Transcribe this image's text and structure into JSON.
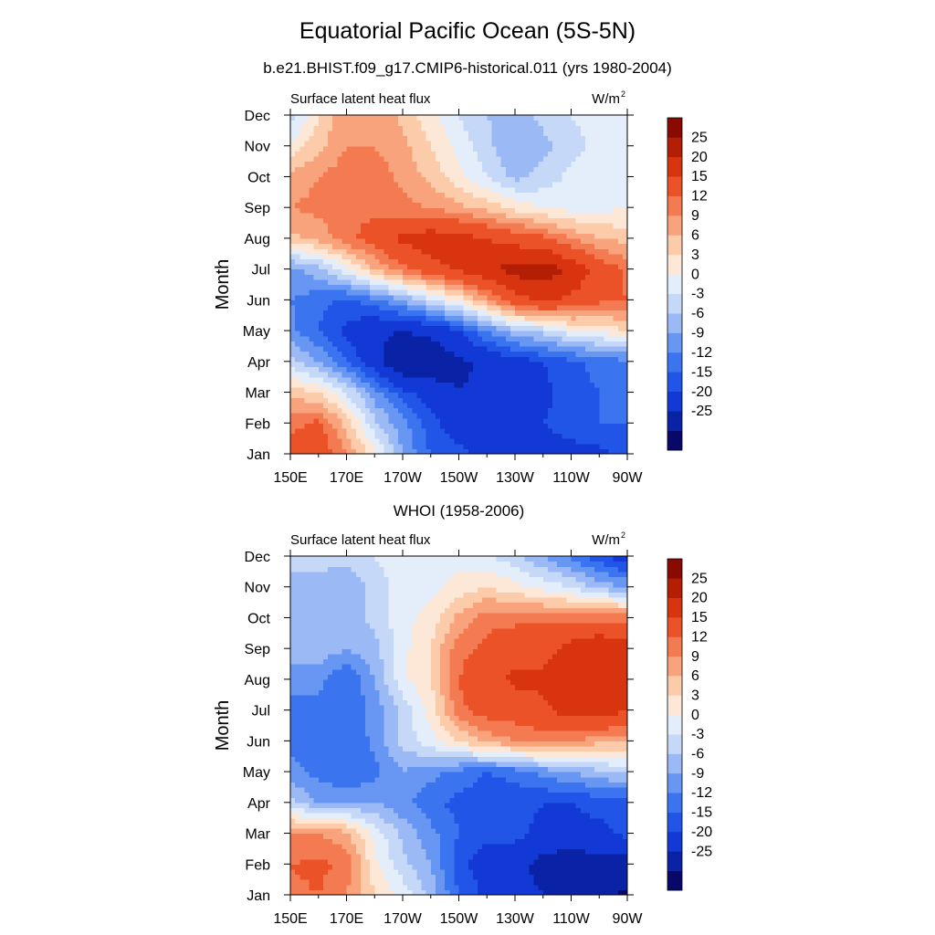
{
  "title": "Equatorial Pacific Ocean (5S-5N)",
  "subtitle": "b.e21.BHIST.f09_g17.CMIP6-historical.011 (yrs 1980-2004)",
  "ylabel": "Month",
  "months": [
    "Jan",
    "Feb",
    "Mar",
    "Apr",
    "May",
    "Jun",
    "Jul",
    "Aug",
    "Sep",
    "Oct",
    "Nov",
    "Dec"
  ],
  "xticks": [
    "150E",
    "170E",
    "170W",
    "150W",
    "130W",
    "110W",
    "90W"
  ],
  "colorbar": {
    "labels": [
      "25",
      "20",
      "15",
      "12",
      "9",
      "6",
      "3",
      "0",
      "-3",
      "-6",
      "-9",
      "-12",
      "-15",
      "-20",
      "-25"
    ],
    "levels": [
      -30,
      -25,
      -20,
      -15,
      -12,
      -9,
      -6,
      -3,
      0,
      3,
      6,
      9,
      12,
      15,
      20,
      25,
      30
    ],
    "colors": [
      "#08086b",
      "#0a23a6",
      "#1238d6",
      "#2055e8",
      "#3a74ee",
      "#6797f2",
      "#9bbaf5",
      "#c6d8f7",
      "#e4eefa",
      "#fde7d6",
      "#fccbaa",
      "#f9a37c",
      "#f47a52",
      "#ec5228",
      "#d83410",
      "#b41e05",
      "#8a0a02"
    ]
  },
  "panels": [
    {
      "name": "model",
      "header": "",
      "left_label": "Surface latent heat flux",
      "units": "W/m",
      "units_sup": "2"
    },
    {
      "name": "obs",
      "header": "WHOI (1958-2006)",
      "left_label": "Surface latent heat flux",
      "units": "W/m",
      "units_sup": "2"
    }
  ],
  "chart_data": [
    {
      "type": "heatmap",
      "title": "Surface latent heat flux",
      "subtitle": "b.e21.BHIST.f09_g17.CMIP6-historical.011 (yrs 1980-2004)",
      "units": "W/m2",
      "ylabel": "Month",
      "x": [
        "150E",
        "160E",
        "170E",
        "180",
        "170W",
        "160W",
        "150W",
        "140W",
        "130W",
        "120W",
        "110W",
        "100W",
        "90W"
      ],
      "y": [
        "Jan",
        "Feb",
        "Mar",
        "Apr",
        "May",
        "Jun",
        "Jul",
        "Aug",
        "Sep",
        "Oct",
        "Nov",
        "Dec"
      ],
      "z": [
        [
          16,
          18,
          12,
          4,
          -6,
          -12,
          -14,
          -16,
          -15,
          -16,
          -16,
          -16,
          -14
        ],
        [
          14,
          16,
          8,
          -2,
          -8,
          -14,
          -17,
          -18,
          -17,
          -15,
          -14,
          -12,
          -12
        ],
        [
          8,
          6,
          0,
          -8,
          -14,
          -17,
          -20,
          -19,
          -18,
          -16,
          -13,
          -12,
          -12
        ],
        [
          -2,
          -6,
          -12,
          -18,
          -25,
          -24,
          -21,
          -19,
          -17,
          -15,
          -13,
          -11,
          -10
        ],
        [
          -8,
          -12,
          -16,
          -19,
          -20,
          -19,
          -15,
          -9,
          -4,
          -2,
          2,
          3,
          6
        ],
        [
          -9,
          -11,
          -13,
          -10,
          -6,
          -1,
          4,
          11,
          18,
          21,
          19,
          16,
          15
        ],
        [
          -7,
          -4,
          2,
          9,
          14,
          18,
          21,
          24,
          27,
          28,
          24,
          18,
          14
        ],
        [
          8,
          10,
          14,
          17,
          21,
          23,
          22,
          20,
          18,
          16,
          12,
          9,
          8
        ],
        [
          12,
          13,
          14,
          14,
          13,
          12,
          10,
          8,
          5,
          3,
          2,
          2,
          3
        ],
        [
          10,
          12,
          14,
          14,
          11,
          8,
          4,
          0,
          -4,
          -2,
          1,
          2,
          2
        ],
        [
          4,
          8,
          12,
          12,
          10,
          6,
          2,
          -2,
          -6,
          -4,
          -1,
          1,
          1
        ],
        [
          -2,
          6,
          11,
          12,
          8,
          4,
          0,
          -3,
          -5,
          -2,
          0,
          1,
          0
        ]
      ]
    },
    {
      "type": "heatmap",
      "title": "WHOI (1958-2006)",
      "units": "W/m2",
      "ylabel": "Month",
      "x": [
        "150E",
        "160E",
        "170E",
        "180",
        "170W",
        "160W",
        "150W",
        "140W",
        "130W",
        "120W",
        "110W",
        "100W",
        "90W"
      ],
      "y": [
        "Jan",
        "Feb",
        "Mar",
        "Apr",
        "May",
        "Jun",
        "Jul",
        "Aug",
        "Sep",
        "Oct",
        "Nov",
        "Dec"
      ],
      "z": [
        [
          14,
          15,
          12,
          6,
          2,
          -4,
          -12,
          -16,
          -18,
          -20,
          -22,
          -24,
          -26
        ],
        [
          15,
          16,
          14,
          4,
          -2,
          -6,
          -14,
          -17,
          -18,
          -22,
          -24,
          -22,
          -22
        ],
        [
          12,
          12,
          10,
          2,
          -4,
          -8,
          -12,
          -14,
          -14,
          -16,
          -16,
          -16,
          -14
        ],
        [
          -2,
          -6,
          -6,
          -6,
          -8,
          -11,
          -13,
          -14,
          -14,
          -15,
          -15,
          -14,
          -14
        ],
        [
          -8,
          -10,
          -12,
          -10,
          -6,
          -8,
          -10,
          -12,
          -11,
          -8,
          -6,
          -4,
          -2
        ],
        [
          -10,
          -12,
          -12,
          -8,
          -2,
          2,
          6,
          10,
          12,
          13,
          12,
          10,
          10
        ],
        [
          -10,
          -10,
          -12,
          -8,
          -2,
          4,
          14,
          17,
          17,
          19,
          22,
          23,
          20
        ],
        [
          -8,
          -8,
          -12,
          -6,
          2,
          6,
          15,
          18,
          21,
          21,
          24,
          22,
          21
        ],
        [
          -4,
          -4,
          -6,
          -4,
          2,
          6,
          14,
          16,
          18,
          18,
          22,
          25,
          22
        ],
        [
          -6,
          -4,
          -5,
          -2,
          2,
          4,
          10,
          14,
          14,
          14,
          14,
          14,
          14
        ],
        [
          -4,
          -4,
          -5,
          -2,
          2,
          2,
          4,
          6,
          4,
          2,
          0,
          -4,
          -6
        ],
        [
          -2,
          -2,
          -2,
          0,
          2,
          2,
          2,
          0,
          -2,
          -6,
          -10,
          -14,
          -18
        ]
      ]
    }
  ]
}
